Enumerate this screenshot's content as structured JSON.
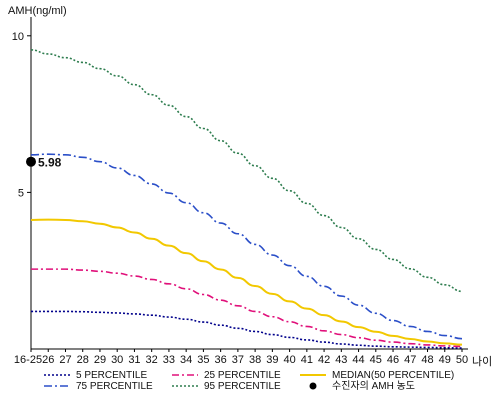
{
  "chart_data": {
    "type": "line",
    "ylabel": "AMH(ng/ml)",
    "xlabel": "나이",
    "x": [
      "16-25",
      "26",
      "27",
      "28",
      "29",
      "30",
      "31",
      "32",
      "33",
      "34",
      "35",
      "36",
      "37",
      "38",
      "39",
      "40",
      "41",
      "42",
      "43",
      "44",
      "45",
      "46",
      "47",
      "48",
      "49",
      "50"
    ],
    "ylim": [
      0,
      10.6
    ],
    "yticks": [
      5,
      10
    ],
    "yticklabels": [
      "5",
      "10"
    ],
    "series": [
      {
        "name": "5 PERCENTILE",
        "color": "#00008b",
        "dash": "2,2",
        "values": [
          1.2,
          1.2,
          1.2,
          1.19,
          1.17,
          1.15,
          1.12,
          1.08,
          1.02,
          0.95,
          0.86,
          0.76,
          0.66,
          0.56,
          0.46,
          0.37,
          0.29,
          0.22,
          0.16,
          0.12,
          0.09,
          0.07,
          0.06,
          0.05,
          0.04,
          0.03
        ]
      },
      {
        "name": "25 PERCENTILE",
        "color": "#e0107a",
        "dash": "7,3,2,3",
        "values": [
          2.55,
          2.55,
          2.55,
          2.52,
          2.48,
          2.42,
          2.33,
          2.22,
          2.08,
          1.92,
          1.74,
          1.56,
          1.38,
          1.2,
          1.03,
          0.87,
          0.72,
          0.58,
          0.46,
          0.36,
          0.28,
          0.22,
          0.17,
          0.13,
          0.1,
          0.08
        ]
      },
      {
        "name": "MEDIAN(50 PERCENTILE)",
        "color": "#f2c800",
        "dash": "",
        "values": [
          4.12,
          4.13,
          4.12,
          4.08,
          4.0,
          3.88,
          3.72,
          3.52,
          3.3,
          3.06,
          2.8,
          2.54,
          2.27,
          2.01,
          1.76,
          1.52,
          1.29,
          1.08,
          0.88,
          0.7,
          0.55,
          0.42,
          0.32,
          0.24,
          0.18,
          0.14
        ]
      },
      {
        "name": "75 PERCENTILE",
        "color": "#2b4fc8",
        "dash": "8,3,2,3",
        "values": [
          6.2,
          6.22,
          6.2,
          6.12,
          5.98,
          5.78,
          5.54,
          5.27,
          4.98,
          4.67,
          4.35,
          4.02,
          3.68,
          3.34,
          3.0,
          2.66,
          2.32,
          2.0,
          1.69,
          1.4,
          1.14,
          0.91,
          0.72,
          0.56,
          0.43,
          0.33
        ]
      },
      {
        "name": "95 PERCENTILE",
        "color": "#2e7d4f",
        "dash": "2,2",
        "values": [
          9.55,
          9.42,
          9.3,
          9.15,
          8.95,
          8.72,
          8.44,
          8.12,
          7.78,
          7.42,
          7.04,
          6.65,
          6.25,
          5.85,
          5.45,
          5.05,
          4.65,
          4.26,
          3.88,
          3.52,
          3.18,
          2.86,
          2.56,
          2.29,
          2.05,
          1.84
        ]
      }
    ],
    "markers": [
      {
        "name": "수진자의 AMH 농도",
        "x": "16-25",
        "y": 5.98,
        "label": "5.98",
        "color": "#000000"
      }
    ],
    "legend": {
      "position": "bottom",
      "items": [
        "5 PERCENTILE",
        "25 PERCENTILE",
        "MEDIAN(50 PERCENTILE)",
        "75 PERCENTILE",
        "95 PERCENTILE",
        "수진자의 AMH 농도"
      ]
    },
    "grid": false
  }
}
